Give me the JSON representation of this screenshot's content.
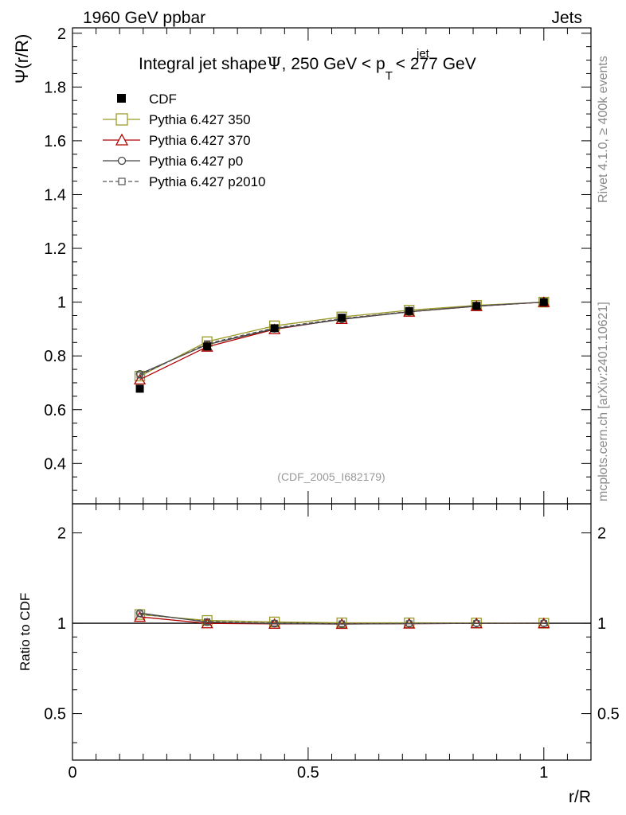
{
  "header": {
    "left": "1960 GeV ppbar",
    "right": "Jets"
  },
  "side": {
    "rivet": "Rivet 4.1.0, ≥ 400k events",
    "mcplots": "mcplots.cern.ch [arXiv:2401.10621]"
  },
  "chart_data": {
    "type": "line",
    "title": {
      "prefix": "Integral jet shape",
      "psi": "Ψ",
      "range_lo": ", 250 GeV < p",
      "sub": "T",
      "sup": "jet",
      "range_hi": " < 277 GeV"
    },
    "analysis_id": "(CDF_2005_I682179)",
    "xlabel": "r/R",
    "ylabel": "Ψ(r/R)",
    "ratio_ylabel": "Ratio to CDF",
    "xlim": [
      0,
      1.1
    ],
    "ylim": [
      0.25,
      2.02
    ],
    "ratio_ylim": [
      0.35,
      2.5
    ],
    "x_ticks": [
      "0",
      "0.5",
      "1"
    ],
    "x_tick_values": [
      0,
      0.5,
      1
    ],
    "y_ticks": [
      "0.4",
      "0.6",
      "0.8",
      "1",
      "1.2",
      "1.4",
      "1.6",
      "1.8",
      "2"
    ],
    "y_tick_values": [
      0.4,
      0.6,
      0.8,
      1.0,
      1.2,
      1.4,
      1.6,
      1.8,
      2.0
    ],
    "ratio_ticks": [
      "0.5",
      "1",
      "2"
    ],
    "ratio_tick_values": [
      0.5,
      1,
      2
    ],
    "x": [
      0.1429,
      0.2857,
      0.4286,
      0.5714,
      0.7143,
      0.8571,
      1.0
    ],
    "data": {
      "name": "CDF",
      "values": [
        0.678,
        0.835,
        0.903,
        0.942,
        0.967,
        0.986,
        1.0
      ]
    },
    "series": [
      {
        "name": "Pythia 6.427 350",
        "color": "#9a9a28",
        "dash": "solid",
        "marker": "square-open",
        "values": [
          0.725,
          0.853,
          0.912,
          0.945,
          0.97,
          0.988,
          1.0
        ]
      },
      {
        "name": "Pythia 6.427 370",
        "color": "#b00000",
        "dash": "solid",
        "marker": "triangle-open",
        "values": [
          0.712,
          0.834,
          0.899,
          0.937,
          0.964,
          0.985,
          1.0
        ]
      },
      {
        "name": "Pythia 6.427 p0",
        "color": "#444444",
        "dash": "solid",
        "marker": "circle-open",
        "values": [
          0.733,
          0.842,
          0.901,
          0.936,
          0.964,
          0.985,
          1.0
        ]
      },
      {
        "name": "Pythia 6.427 p2010",
        "color": "#555555",
        "dash": "dashed",
        "marker": "square-open-small",
        "values": [
          0.728,
          0.846,
          0.904,
          0.939,
          0.965,
          0.986,
          1.0
        ]
      }
    ]
  }
}
